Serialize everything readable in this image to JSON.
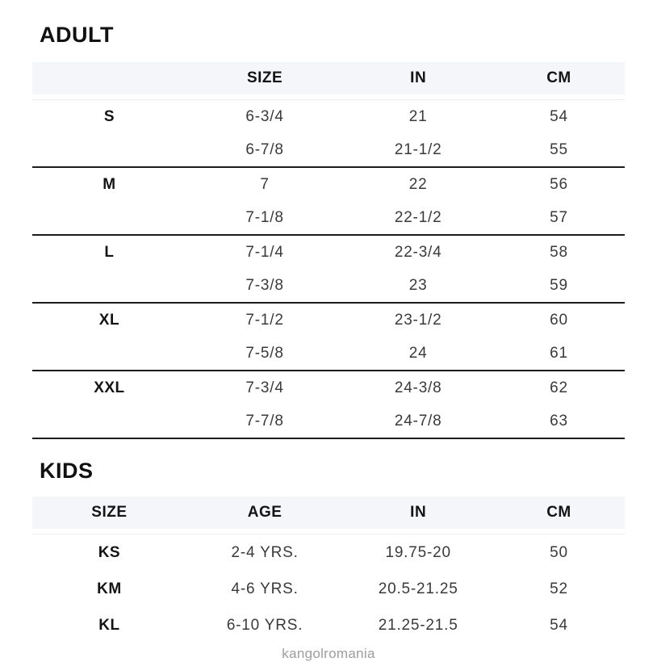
{
  "adult": {
    "heading": "ADULT",
    "columns": {
      "size_label": "",
      "size": "SIZE",
      "in": "IN",
      "cm": "CM"
    },
    "groups": [
      {
        "label": "S",
        "rows": [
          [
            "6-3/4",
            "21",
            "54"
          ],
          [
            "6-7/8",
            "21-1/2",
            "55"
          ]
        ]
      },
      {
        "label": "M",
        "rows": [
          [
            "7",
            "22",
            "56"
          ],
          [
            "7-1/8",
            "22-1/2",
            "57"
          ]
        ]
      },
      {
        "label": "L",
        "rows": [
          [
            "7-1/4",
            "22-3/4",
            "58"
          ],
          [
            "7-3/8",
            "23",
            "59"
          ]
        ]
      },
      {
        "label": "XL",
        "rows": [
          [
            "7-1/2",
            "23-1/2",
            "60"
          ],
          [
            "7-5/8",
            "24",
            "61"
          ]
        ]
      },
      {
        "label": "XXL",
        "rows": [
          [
            "7-3/4",
            "24-3/8",
            "62"
          ],
          [
            "7-7/8",
            "24-7/8",
            "63"
          ]
        ]
      }
    ]
  },
  "kids": {
    "heading": "KIDS",
    "columns": {
      "size": "SIZE",
      "age": "AGE",
      "in": "IN",
      "cm": "CM"
    },
    "rows": [
      {
        "size": "KS",
        "age": "2-4 YRS.",
        "in": "19.75-20",
        "cm": "50"
      },
      {
        "size": "KM",
        "age": "4-6 YRS.",
        "in": "20.5-21.25",
        "cm": "52"
      },
      {
        "size": "KL",
        "age": "6-10 YRS.",
        "in": "21.25-21.5",
        "cm": "54"
      }
    ]
  },
  "footer": {
    "watermark": "kangolromania"
  },
  "colors": {
    "background": "#ffffff",
    "header_row_bg": "#f4f6f9",
    "heading_text": "#111111",
    "data_text": "#3a3a3a",
    "thick_rule": "#1c1c1c",
    "thin_rule": "#ededed",
    "watermark_text": "#9d9d9d"
  }
}
